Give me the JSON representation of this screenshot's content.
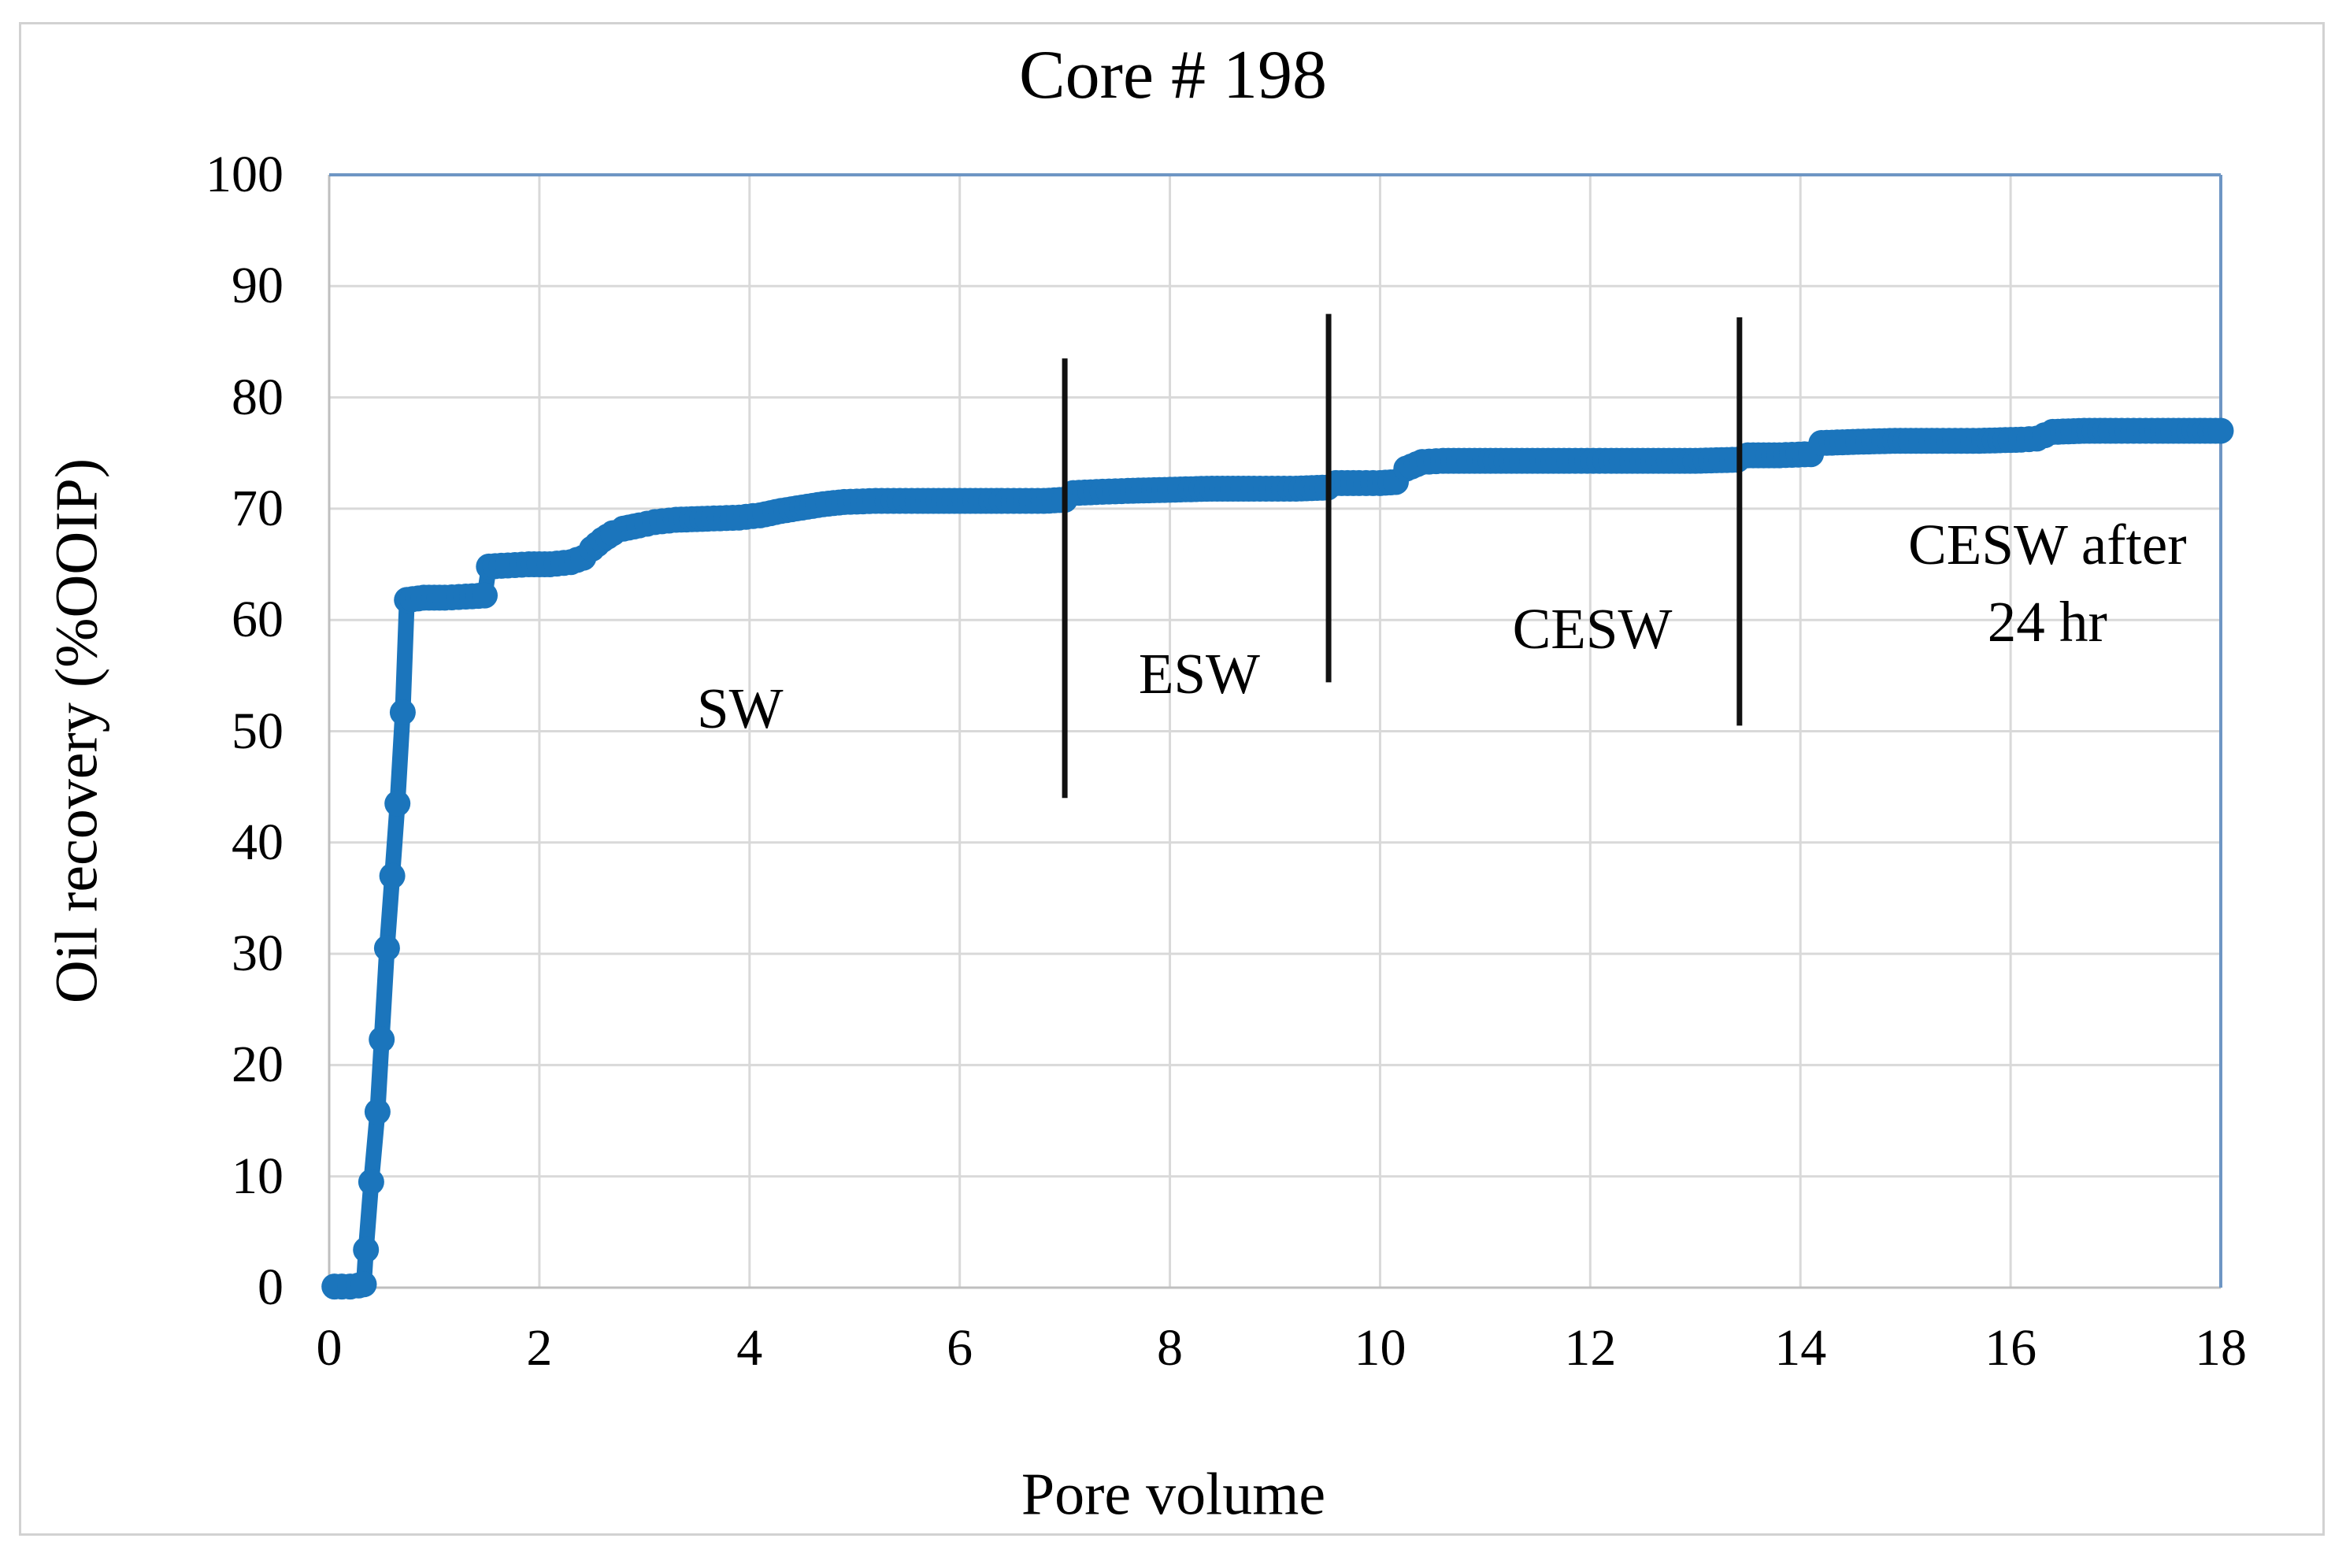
{
  "figure": {
    "title": "Core # 198"
  },
  "chart_data": {
    "type": "scatter",
    "title": "Core # 198",
    "xlabel": "Pore volume",
    "ylabel": "Oil recovery (%OOIP)",
    "xlim": [
      0,
      18
    ],
    "ylim": [
      0,
      100
    ],
    "x_ticks": [
      0,
      2,
      4,
      6,
      8,
      10,
      12,
      14,
      16,
      18
    ],
    "y_ticks": [
      0,
      10,
      20,
      30,
      40,
      50,
      60,
      70,
      80,
      90,
      100
    ],
    "grid": true,
    "legend": "none",
    "series": [
      {
        "name": "oil-recovery-curve",
        "color": "#1b75bc",
        "marker": "circle",
        "points": [
          [
            0.05,
            0.1
          ],
          [
            0.12,
            0.1
          ],
          [
            0.2,
            0.1
          ],
          [
            0.28,
            0.2
          ],
          [
            0.33,
            0.3
          ],
          [
            0.35,
            3.4
          ],
          [
            0.4,
            9.5
          ],
          [
            0.46,
            15.8
          ],
          [
            0.5,
            22.3
          ],
          [
            0.55,
            30.5
          ],
          [
            0.6,
            37.0
          ],
          [
            0.65,
            43.5
          ],
          [
            0.7,
            51.7
          ],
          [
            0.74,
            61.8
          ],
          [
            0.9,
            62.0
          ],
          [
            1.1,
            62.0
          ],
          [
            1.3,
            62.1
          ],
          [
            1.48,
            62.2
          ],
          [
            1.52,
            64.8
          ],
          [
            1.7,
            64.9
          ],
          [
            1.9,
            65.0
          ],
          [
            2.1,
            65.0
          ],
          [
            2.3,
            65.2
          ],
          [
            2.42,
            65.6
          ],
          [
            2.5,
            66.4
          ],
          [
            2.6,
            67.2
          ],
          [
            2.7,
            67.8
          ],
          [
            2.8,
            68.2
          ],
          [
            2.95,
            68.5
          ],
          [
            3.1,
            68.8
          ],
          [
            3.3,
            69.0
          ],
          [
            3.6,
            69.1
          ],
          [
            3.9,
            69.2
          ],
          [
            4.1,
            69.4
          ],
          [
            4.3,
            69.8
          ],
          [
            4.5,
            70.1
          ],
          [
            4.7,
            70.4
          ],
          [
            4.9,
            70.6
          ],
          [
            5.2,
            70.7
          ],
          [
            5.6,
            70.7
          ],
          [
            6.0,
            70.7
          ],
          [
            6.4,
            70.7
          ],
          [
            6.8,
            70.7
          ],
          [
            7.0,
            70.8
          ],
          [
            7.08,
            71.4
          ],
          [
            7.3,
            71.5
          ],
          [
            7.6,
            71.6
          ],
          [
            8.0,
            71.7
          ],
          [
            8.4,
            71.8
          ],
          [
            8.8,
            71.8
          ],
          [
            9.2,
            71.8
          ],
          [
            9.5,
            71.9
          ],
          [
            9.58,
            72.3
          ],
          [
            9.8,
            72.3
          ],
          [
            10.0,
            72.3
          ],
          [
            10.15,
            72.4
          ],
          [
            10.25,
            73.6
          ],
          [
            10.4,
            74.2
          ],
          [
            10.6,
            74.3
          ],
          [
            11.0,
            74.3
          ],
          [
            11.4,
            74.3
          ],
          [
            11.8,
            74.3
          ],
          [
            12.2,
            74.3
          ],
          [
            12.6,
            74.3
          ],
          [
            13.0,
            74.3
          ],
          [
            13.4,
            74.4
          ],
          [
            13.5,
            74.8
          ],
          [
            13.8,
            74.8
          ],
          [
            14.1,
            74.9
          ],
          [
            14.2,
            75.9
          ],
          [
            14.5,
            76.0
          ],
          [
            14.9,
            76.1
          ],
          [
            15.3,
            76.1
          ],
          [
            15.7,
            76.1
          ],
          [
            16.1,
            76.2
          ],
          [
            16.25,
            76.3
          ],
          [
            16.4,
            76.9
          ],
          [
            16.7,
            77.0
          ],
          [
            17.0,
            77.0
          ],
          [
            17.4,
            77.0
          ],
          [
            17.7,
            77.0
          ],
          [
            18.0,
            77.0
          ]
        ]
      }
    ],
    "phase_dividers": [
      {
        "x": 7.0,
        "y_bottom": 44.0,
        "y_top": 83.5
      },
      {
        "x": 9.51,
        "y_bottom": 54.4,
        "y_top": 87.5
      },
      {
        "x": 13.42,
        "y_bottom": 50.5,
        "y_top": 87.2
      }
    ],
    "annotations": [
      {
        "lines": [
          "SW"
        ],
        "x": 3.91,
        "y": 52.0
      },
      {
        "lines": [
          "ESW"
        ],
        "x": 8.28,
        "y": 55.1
      },
      {
        "lines": [
          "CESW"
        ],
        "x": 12.02,
        "y": 59.2
      },
      {
        "lines": [
          "CESW after",
          "24 hr"
        ],
        "x": 16.35,
        "y": 63.3
      }
    ]
  },
  "colors": {
    "curve": "#1b75bc",
    "gridline": "#d9d9d9",
    "axis_line": "#bfbfbf",
    "plot_border_accent": "#6e96c4",
    "divider_line": "#111111",
    "figure_border": "#d2d2d2",
    "text": "#000000"
  }
}
